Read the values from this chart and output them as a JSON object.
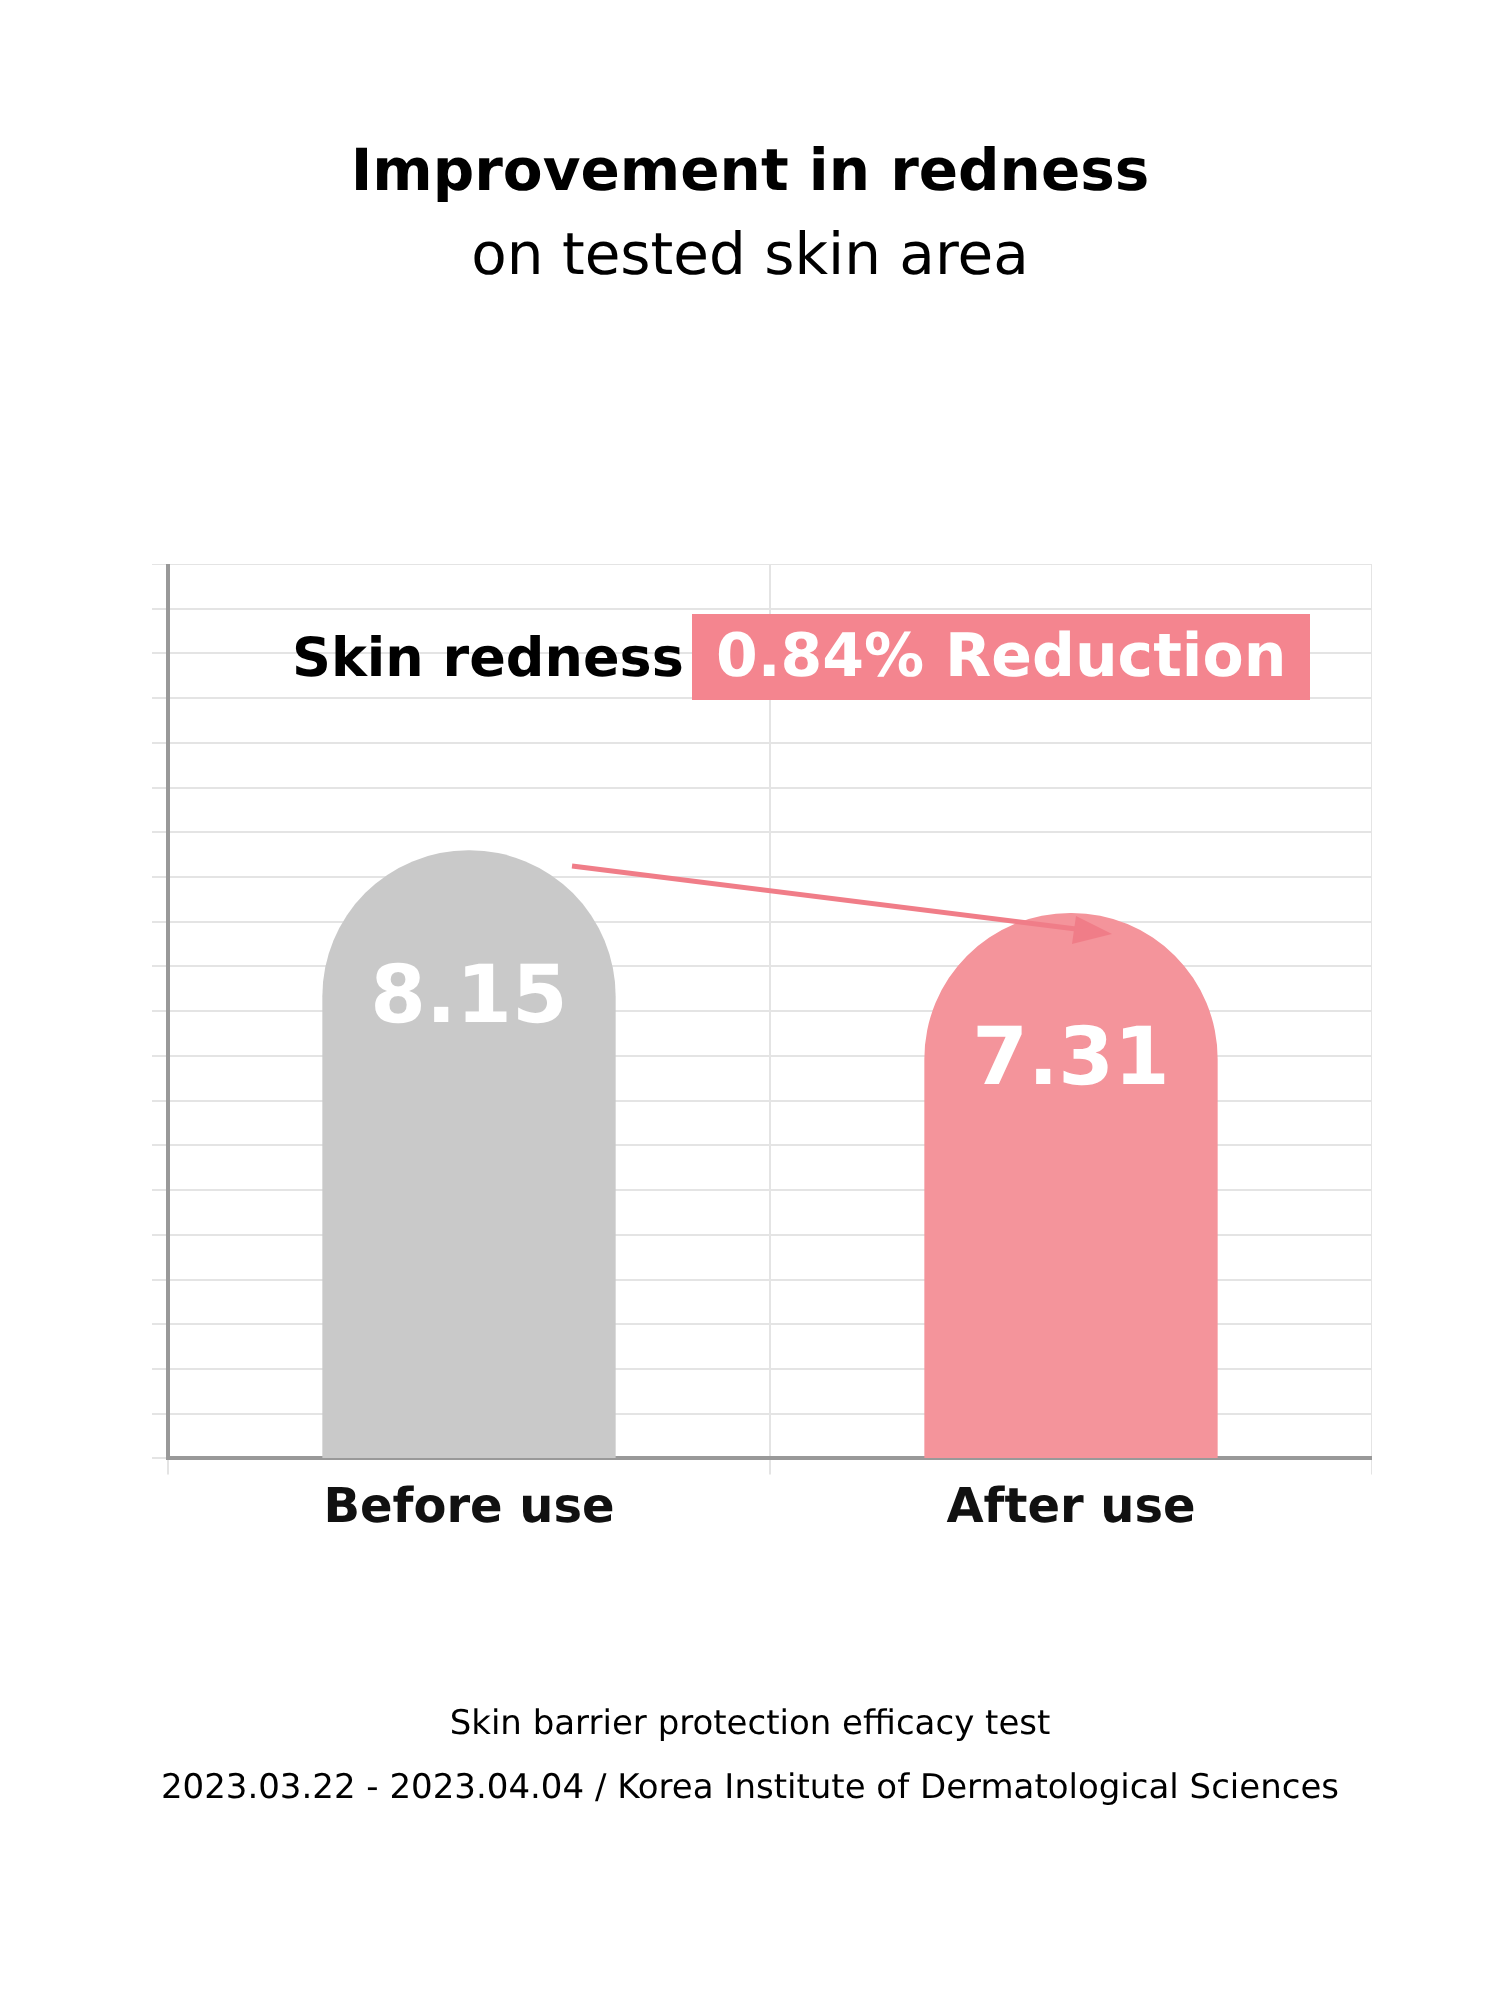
{
  "chart_data": {
    "type": "bar",
    "title": "Improvement in redness",
    "subtitle": "on tested skin area",
    "categories": [
      "Before use",
      "After use"
    ],
    "values": [
      8.15,
      7.31
    ],
    "colors": [
      "#c9c9c9",
      "#f4949b"
    ],
    "data_labels": true,
    "grid": true,
    "annotations": [
      "Skin redness",
      "0.84% Reduction",
      "Skin barrier protection efficacy test",
      "2023.03.22 - 2023.04.04 / Korea Institute of Dermatological Sciences"
    ]
  }
}
